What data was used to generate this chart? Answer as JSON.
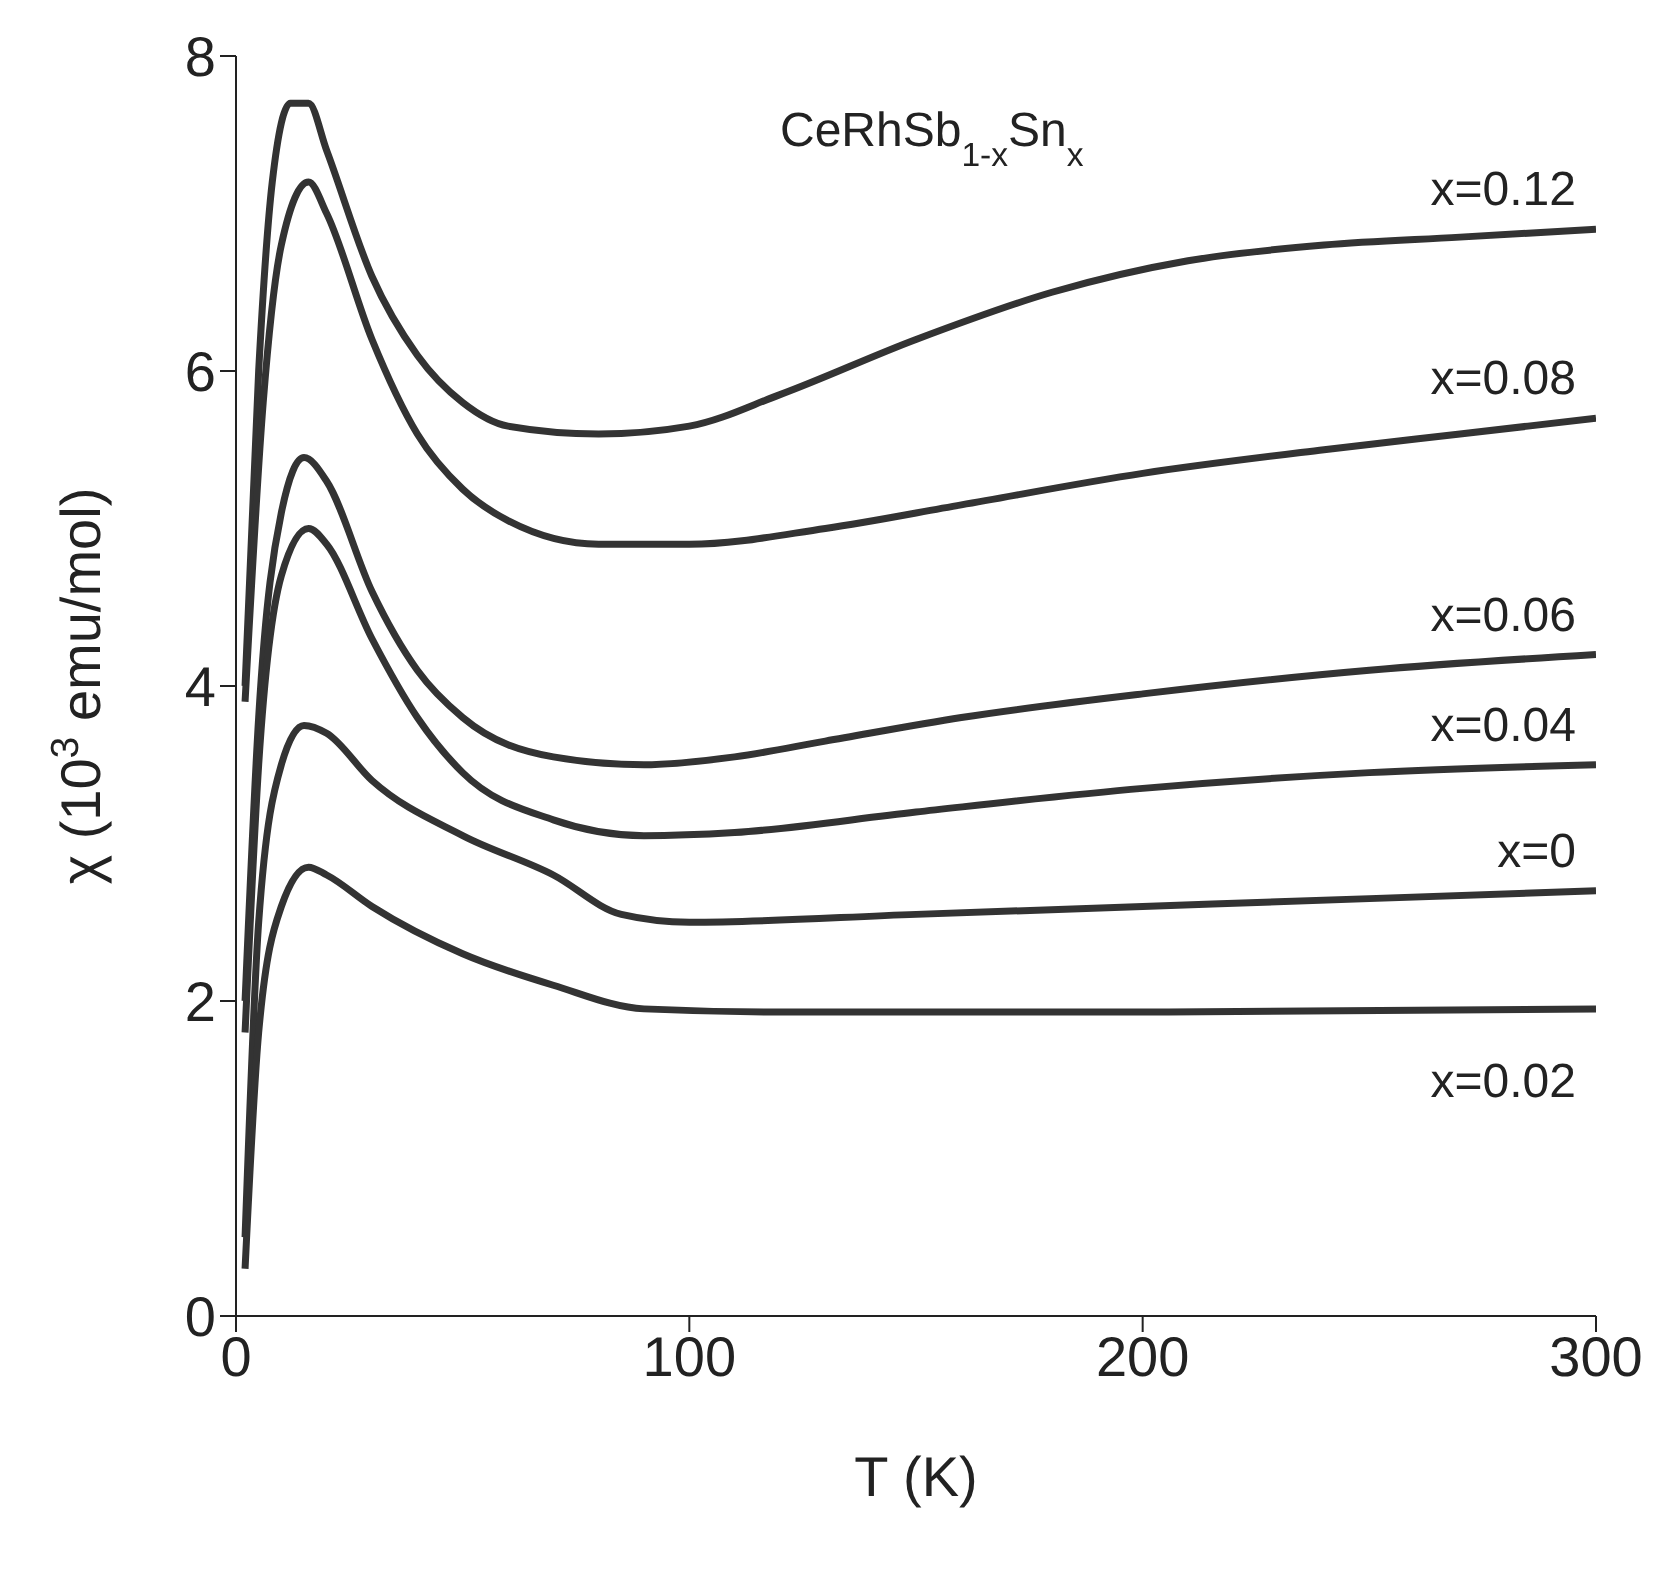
{
  "chart_data": {
    "type": "line",
    "title": "CeRhSb$_{1-x}$Sn$_{x}$",
    "xlabel": "T (K)",
    "ylabel": "χ (10$^{3}$ emu/mol)",
    "xlim": [
      0,
      300
    ],
    "xticks": [
      0,
      100,
      200,
      300
    ],
    "ylim": [
      0,
      8
    ],
    "yticks": [
      0,
      2,
      4,
      6,
      8
    ],
    "grid": false,
    "legend": false,
    "marker": "none",
    "line_style": "solid",
    "series": [
      {
        "name": "x=0.12",
        "color": "#333333",
        "x": [
          2,
          5,
          8,
          12,
          16,
          20,
          30,
          40,
          50,
          60,
          80,
          100,
          120,
          150,
          180,
          210,
          240,
          270,
          300
        ],
        "values": [
          4.0,
          6.0,
          7.2,
          7.7,
          7.7,
          7.4,
          6.6,
          6.1,
          5.8,
          5.65,
          5.6,
          5.65,
          5.85,
          6.2,
          6.5,
          6.7,
          6.8,
          6.85,
          6.9
        ]
      },
      {
        "name": "x=0.08",
        "color": "#333333",
        "x": [
          2,
          6,
          10,
          16,
          20,
          30,
          40,
          50,
          60,
          80,
          100,
          130,
          160,
          200,
          240,
          270,
          300
        ],
        "values": [
          3.9,
          5.8,
          6.8,
          7.2,
          7.0,
          6.2,
          5.6,
          5.25,
          5.05,
          4.9,
          4.9,
          5.0,
          5.15,
          5.35,
          5.5,
          5.6,
          5.7
        ]
      },
      {
        "name": "x=0.06",
        "color": "#333333",
        "x": [
          2,
          5,
          10,
          15,
          20,
          30,
          40,
          50,
          70,
          90,
          110,
          130,
          160,
          200,
          250,
          300
        ],
        "values": [
          2.0,
          3.8,
          5.1,
          5.45,
          5.3,
          4.6,
          4.1,
          3.8,
          3.55,
          3.5,
          3.55,
          3.65,
          3.8,
          3.95,
          4.1,
          4.2
        ]
      },
      {
        "name": "x=0.04",
        "color": "#333333",
        "x": [
          2,
          5,
          10,
          16,
          20,
          30,
          40,
          50,
          70,
          90,
          110,
          150,
          200,
          250,
          300
        ],
        "values": [
          1.8,
          3.5,
          4.7,
          5.0,
          4.9,
          4.3,
          3.8,
          3.45,
          3.15,
          3.05,
          3.07,
          3.2,
          3.35,
          3.45,
          3.5
        ]
      },
      {
        "name": "x=0",
        "color": "#333333",
        "x": [
          2,
          5,
          10,
          15,
          20,
          30,
          50,
          70,
          85,
          100,
          150,
          200,
          250,
          300
        ],
        "values": [
          0.5,
          2.5,
          3.5,
          3.75,
          3.7,
          3.4,
          3.05,
          2.8,
          2.55,
          2.5,
          2.55,
          2.6,
          2.65,
          2.7
        ]
      },
      {
        "name": "x=0.02",
        "color": "#333333",
        "x": [
          2,
          5,
          10,
          16,
          20,
          30,
          50,
          70,
          90,
          120,
          200,
          300
        ],
        "values": [
          0.3,
          1.8,
          2.6,
          2.85,
          2.8,
          2.6,
          2.3,
          2.1,
          1.95,
          1.93,
          1.93,
          1.95
        ]
      }
    ]
  }
}
